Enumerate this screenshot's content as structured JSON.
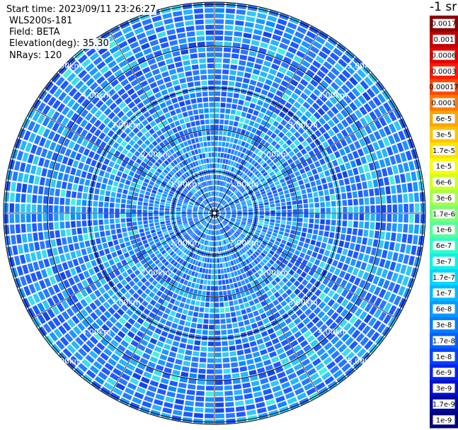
{
  "info": {
    "start_time": "Start time: 2023/09/11 23:26:27",
    "instrument": "WLS200s-181",
    "field": "Field: BETA",
    "elevation": "Elevation(deg): 35.30",
    "nrays": "NRays: 120"
  },
  "colorbar": {
    "unit_label": "-1 sr",
    "ticks": [
      {
        "label": "0.0017",
        "color": "#8b0000"
      },
      {
        "label": "0.001",
        "color": "#c00000"
      },
      {
        "label": "0.0006",
        "color": "#e60000"
      },
      {
        "label": "0.0003",
        "color": "#ff1a00"
      },
      {
        "label": "0.00017",
        "color": "#ff4a00"
      },
      {
        "label": "0.0001",
        "color": "#ff7a00"
      },
      {
        "label": "6e-5",
        "color": "#ffa500"
      },
      {
        "label": "3e-5",
        "color": "#ffc400"
      },
      {
        "label": "1.7e-5",
        "color": "#ffe100"
      },
      {
        "label": "1e-5",
        "color": "#f7ff00"
      },
      {
        "label": "6e-6",
        "color": "#d0ff20"
      },
      {
        "label": "3e-6",
        "color": "#a5ff45"
      },
      {
        "label": "1.7e-6",
        "color": "#7dff70"
      },
      {
        "label": "1e-6",
        "color": "#55ff9a"
      },
      {
        "label": "6e-7",
        "color": "#30ffc4"
      },
      {
        "label": "3e-7",
        "color": "#10f0e8"
      },
      {
        "label": "1.7e-7",
        "color": "#00d8ff"
      },
      {
        "label": "1e-7",
        "color": "#00baff"
      },
      {
        "label": "6e-8",
        "color": "#009cff"
      },
      {
        "label": "3e-8",
        "color": "#007eff"
      },
      {
        "label": "1.7e-8",
        "color": "#0060ff"
      },
      {
        "label": "1e-8",
        "color": "#0042ff"
      },
      {
        "label": "6e-9",
        "color": "#0024f0"
      },
      {
        "label": "3e-9",
        "color": "#0010c8"
      },
      {
        "label": "1.7e-9",
        "color": "#0008a0"
      },
      {
        "label": "1e-9",
        "color": "#00037a"
      }
    ]
  },
  "chart_data": {
    "type": "heatmap",
    "projection": "polar (PPI scan)",
    "field": "BETA",
    "n_rays": 120,
    "range_ring_labels": [
      "1.00km",
      "2.00km",
      "3.00km",
      "4.00km",
      "5.00km"
    ],
    "range_rings_km": [
      1,
      2,
      3,
      4,
      5
    ],
    "max_range_km": 5,
    "colorscale": "log",
    "value_range": [
      1e-09,
      0.0017
    ],
    "typical_value_range": [
      1e-08,
      3e-07
    ],
    "grid": true
  }
}
